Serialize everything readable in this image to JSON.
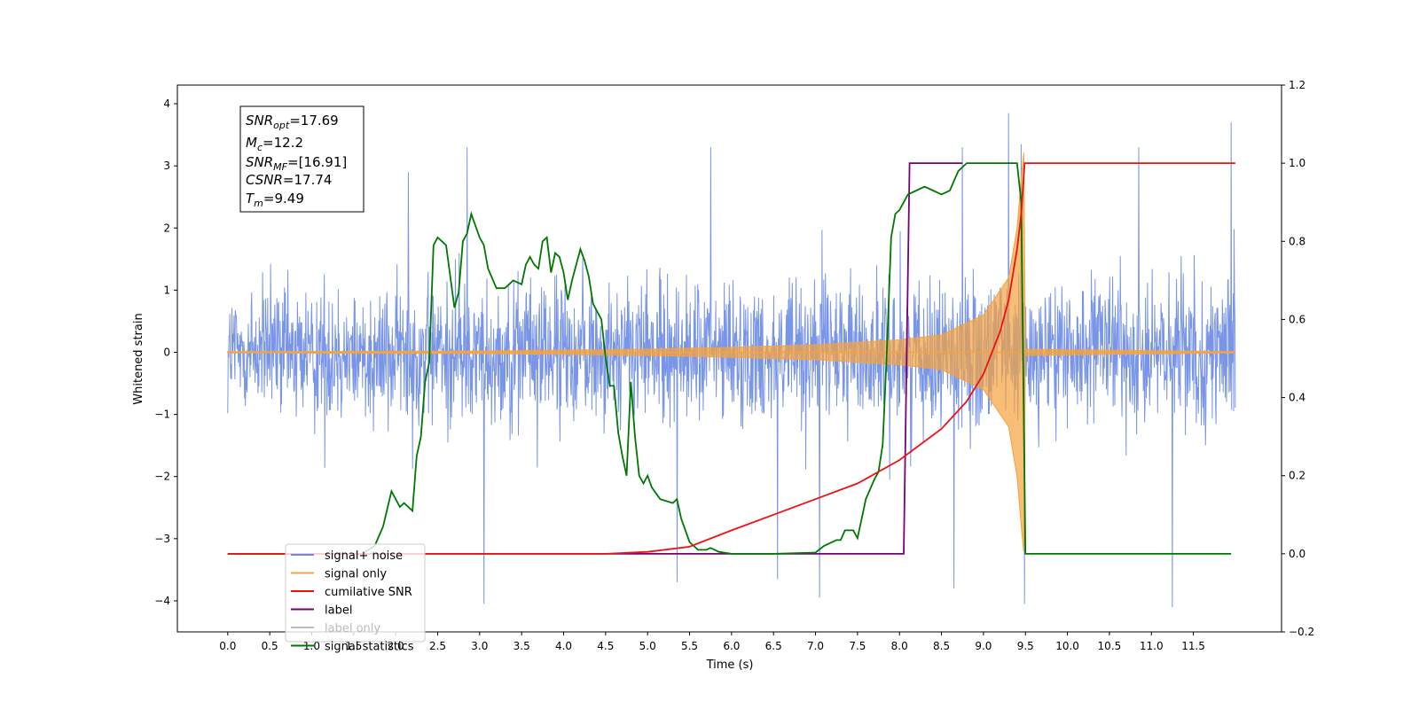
{
  "chart_data": {
    "type": "line",
    "xlabel": "Time (s)",
    "ylabel": "Whitened strain",
    "xlim": [
      -0.6,
      12.55
    ],
    "ylim": [
      -4.5,
      4.3
    ],
    "y2lim": [
      -0.2,
      1.2
    ],
    "grid": false,
    "legend_position": "lower-left",
    "x_ticks": [
      "0.0",
      "0.5",
      "1.0",
      "1.5",
      "2.0",
      "2.5",
      "3.0",
      "3.5",
      "4.0",
      "4.5",
      "5.0",
      "5.5",
      "6.0",
      "6.5",
      "7.0",
      "7.5",
      "8.0",
      "8.5",
      "9.0",
      "9.5",
      "10.0",
      "10.5",
      "11.0",
      "11.5"
    ],
    "y_ticks": [
      "4",
      "3",
      "2",
      "1",
      "0",
      "−1",
      "−2",
      "−3",
      "−4"
    ],
    "y2_ticks": [
      "1.2",
      "1.0",
      "0.8",
      "0.6",
      "0.4",
      "0.2",
      "0.0",
      "−0.2"
    ],
    "annotation": {
      "lines": [
        {
          "base": "SNR",
          "sub": "opt",
          "value": "=17.69"
        },
        {
          "base": "M",
          "sub": "c",
          "value": "=12.2"
        },
        {
          "base": "SNR",
          "sub": "MF",
          "value": "=[16.91]"
        },
        {
          "base": "CSNR",
          "sub": "",
          "value": "=17.74"
        },
        {
          "base": "T",
          "sub": "m",
          "value": "=9.49"
        }
      ]
    },
    "colors": {
      "noise": "#6a8ae6",
      "signal": "#f5a33d",
      "csnr": "#ee1111",
      "label": "#770077",
      "stats": "#007700"
    },
    "series": [
      {
        "name": "signal+ noise",
        "axis": "left",
        "x_range": [
          0.0,
          12.0
        ],
        "envelope": {
          "typical_upper": 2.1,
          "typical_lower": -2.0,
          "max_peak": 3.85,
          "min_peak": -4.1
        },
        "notable_peaks": [
          [
            2.15,
            2.9
          ],
          [
            2.85,
            3.3
          ],
          [
            5.75,
            3.3
          ],
          [
            8.75,
            3.3
          ],
          [
            9.3,
            3.85
          ],
          [
            9.45,
            3.35
          ],
          [
            10.85,
            3.3
          ],
          [
            11.95,
            3.7
          ],
          [
            3.05,
            -4.05
          ],
          [
            5.35,
            -3.7
          ],
          [
            6.55,
            -3.65
          ],
          [
            7.05,
            -3.95
          ],
          [
            8.65,
            -3.8
          ],
          [
            9.49,
            -4.05
          ],
          [
            11.25,
            -4.1
          ]
        ]
      },
      {
        "name": "signal only",
        "axis": "left",
        "x_range": [
          0.0,
          12.0
        ],
        "envelope": [
          [
            0,
            0.01
          ],
          [
            3,
            0.02
          ],
          [
            5,
            0.05
          ],
          [
            6,
            0.08
          ],
          [
            7,
            0.12
          ],
          [
            8,
            0.2
          ],
          [
            8.5,
            0.28
          ],
          [
            9.0,
            0.6
          ],
          [
            9.3,
            1.2
          ],
          [
            9.4,
            2.0
          ],
          [
            9.45,
            2.8
          ],
          [
            9.49,
            3.35
          ],
          [
            9.5,
            0.05
          ],
          [
            12.0,
            0.01
          ]
        ]
      },
      {
        "name": "cumilative SNR",
        "axis": "right",
        "x": [
          0.0,
          4.5,
          5.0,
          5.5,
          6.0,
          6.5,
          7.0,
          7.5,
          8.0,
          8.5,
          8.8,
          9.0,
          9.2,
          9.3,
          9.4,
          9.45,
          9.49,
          9.5,
          12.0
        ],
        "y": [
          0.0,
          0.0,
          0.005,
          0.018,
          0.06,
          0.1,
          0.14,
          0.18,
          0.24,
          0.32,
          0.39,
          0.46,
          0.57,
          0.65,
          0.78,
          0.87,
          1.0,
          1.0,
          1.0
        ]
      },
      {
        "name": "label",
        "axis": "right",
        "x": [
          0.0,
          8.05,
          8.12,
          8.75
        ],
        "y": [
          0.0,
          0.0,
          1.0,
          1.0
        ]
      },
      {
        "name": "signal statistics",
        "axis": "right",
        "x": [
          0.0,
          1.6,
          1.75,
          1.85,
          1.95,
          2.05,
          2.1,
          2.2,
          2.25,
          2.3,
          2.35,
          2.4,
          2.45,
          2.5,
          2.55,
          2.6,
          2.7,
          2.75,
          2.8,
          2.85,
          2.9,
          2.95,
          3.0,
          3.05,
          3.1,
          3.2,
          3.3,
          3.35,
          3.4,
          3.5,
          3.55,
          3.6,
          3.65,
          3.7,
          3.75,
          3.8,
          3.85,
          3.9,
          3.95,
          4.0,
          4.05,
          4.1,
          4.2,
          4.25,
          4.3,
          4.35,
          4.45,
          4.5,
          4.55,
          4.6,
          4.65,
          4.7,
          4.75,
          4.8,
          4.85,
          4.9,
          4.95,
          5.0,
          5.05,
          5.15,
          5.3,
          5.35,
          5.4,
          5.5,
          5.6,
          5.7,
          5.75,
          5.85,
          6.0,
          6.5,
          7.0,
          7.1,
          7.2,
          7.25,
          7.3,
          7.35,
          7.45,
          7.5,
          7.55,
          7.6,
          7.7,
          7.75,
          7.8,
          7.85,
          7.9,
          7.95,
          8.0,
          8.05,
          8.1,
          8.2,
          8.3,
          8.4,
          8.5,
          8.6,
          8.7,
          8.8,
          8.9,
          9.0,
          9.2,
          9.3,
          9.4,
          9.45,
          9.5,
          11.95
        ],
        "y": [
          0.0,
          0.0,
          0.02,
          0.07,
          0.16,
          0.12,
          0.13,
          0.11,
          0.25,
          0.3,
          0.44,
          0.49,
          0.79,
          0.81,
          0.8,
          0.79,
          0.63,
          0.67,
          0.8,
          0.82,
          0.87,
          0.84,
          0.81,
          0.79,
          0.73,
          0.68,
          0.68,
          0.69,
          0.7,
          0.69,
          0.74,
          0.76,
          0.74,
          0.73,
          0.8,
          0.81,
          0.72,
          0.77,
          0.76,
          0.72,
          0.65,
          0.7,
          0.78,
          0.75,
          0.71,
          0.64,
          0.6,
          0.5,
          0.43,
          0.43,
          0.31,
          0.25,
          0.2,
          0.44,
          0.3,
          0.2,
          0.18,
          0.2,
          0.17,
          0.14,
          0.13,
          0.14,
          0.09,
          0.03,
          0.01,
          0.01,
          0.015,
          0.005,
          0.0,
          0.0,
          0.003,
          0.02,
          0.03,
          0.035,
          0.035,
          0.06,
          0.06,
          0.04,
          0.09,
          0.14,
          0.19,
          0.21,
          0.28,
          0.52,
          0.81,
          0.87,
          0.88,
          0.9,
          0.92,
          0.93,
          0.94,
          0.93,
          0.92,
          0.93,
          0.98,
          1.0,
          1.0,
          1.0,
          1.0,
          1.0,
          1.0,
          0.9,
          0.0,
          0.0
        ]
      }
    ]
  },
  "legend": {
    "items": [
      {
        "label": "signal+ noise",
        "color": "#6a8ae6"
      },
      {
        "label": "signal only",
        "color": "#f5a33d"
      },
      {
        "label": "cumilative SNR",
        "color": "#ee1111"
      },
      {
        "label": "label",
        "color": "#770077"
      },
      {
        "label": "label only",
        "color": "#bbbbbb"
      },
      {
        "label": "signal statistics",
        "color": "#007700"
      }
    ]
  }
}
